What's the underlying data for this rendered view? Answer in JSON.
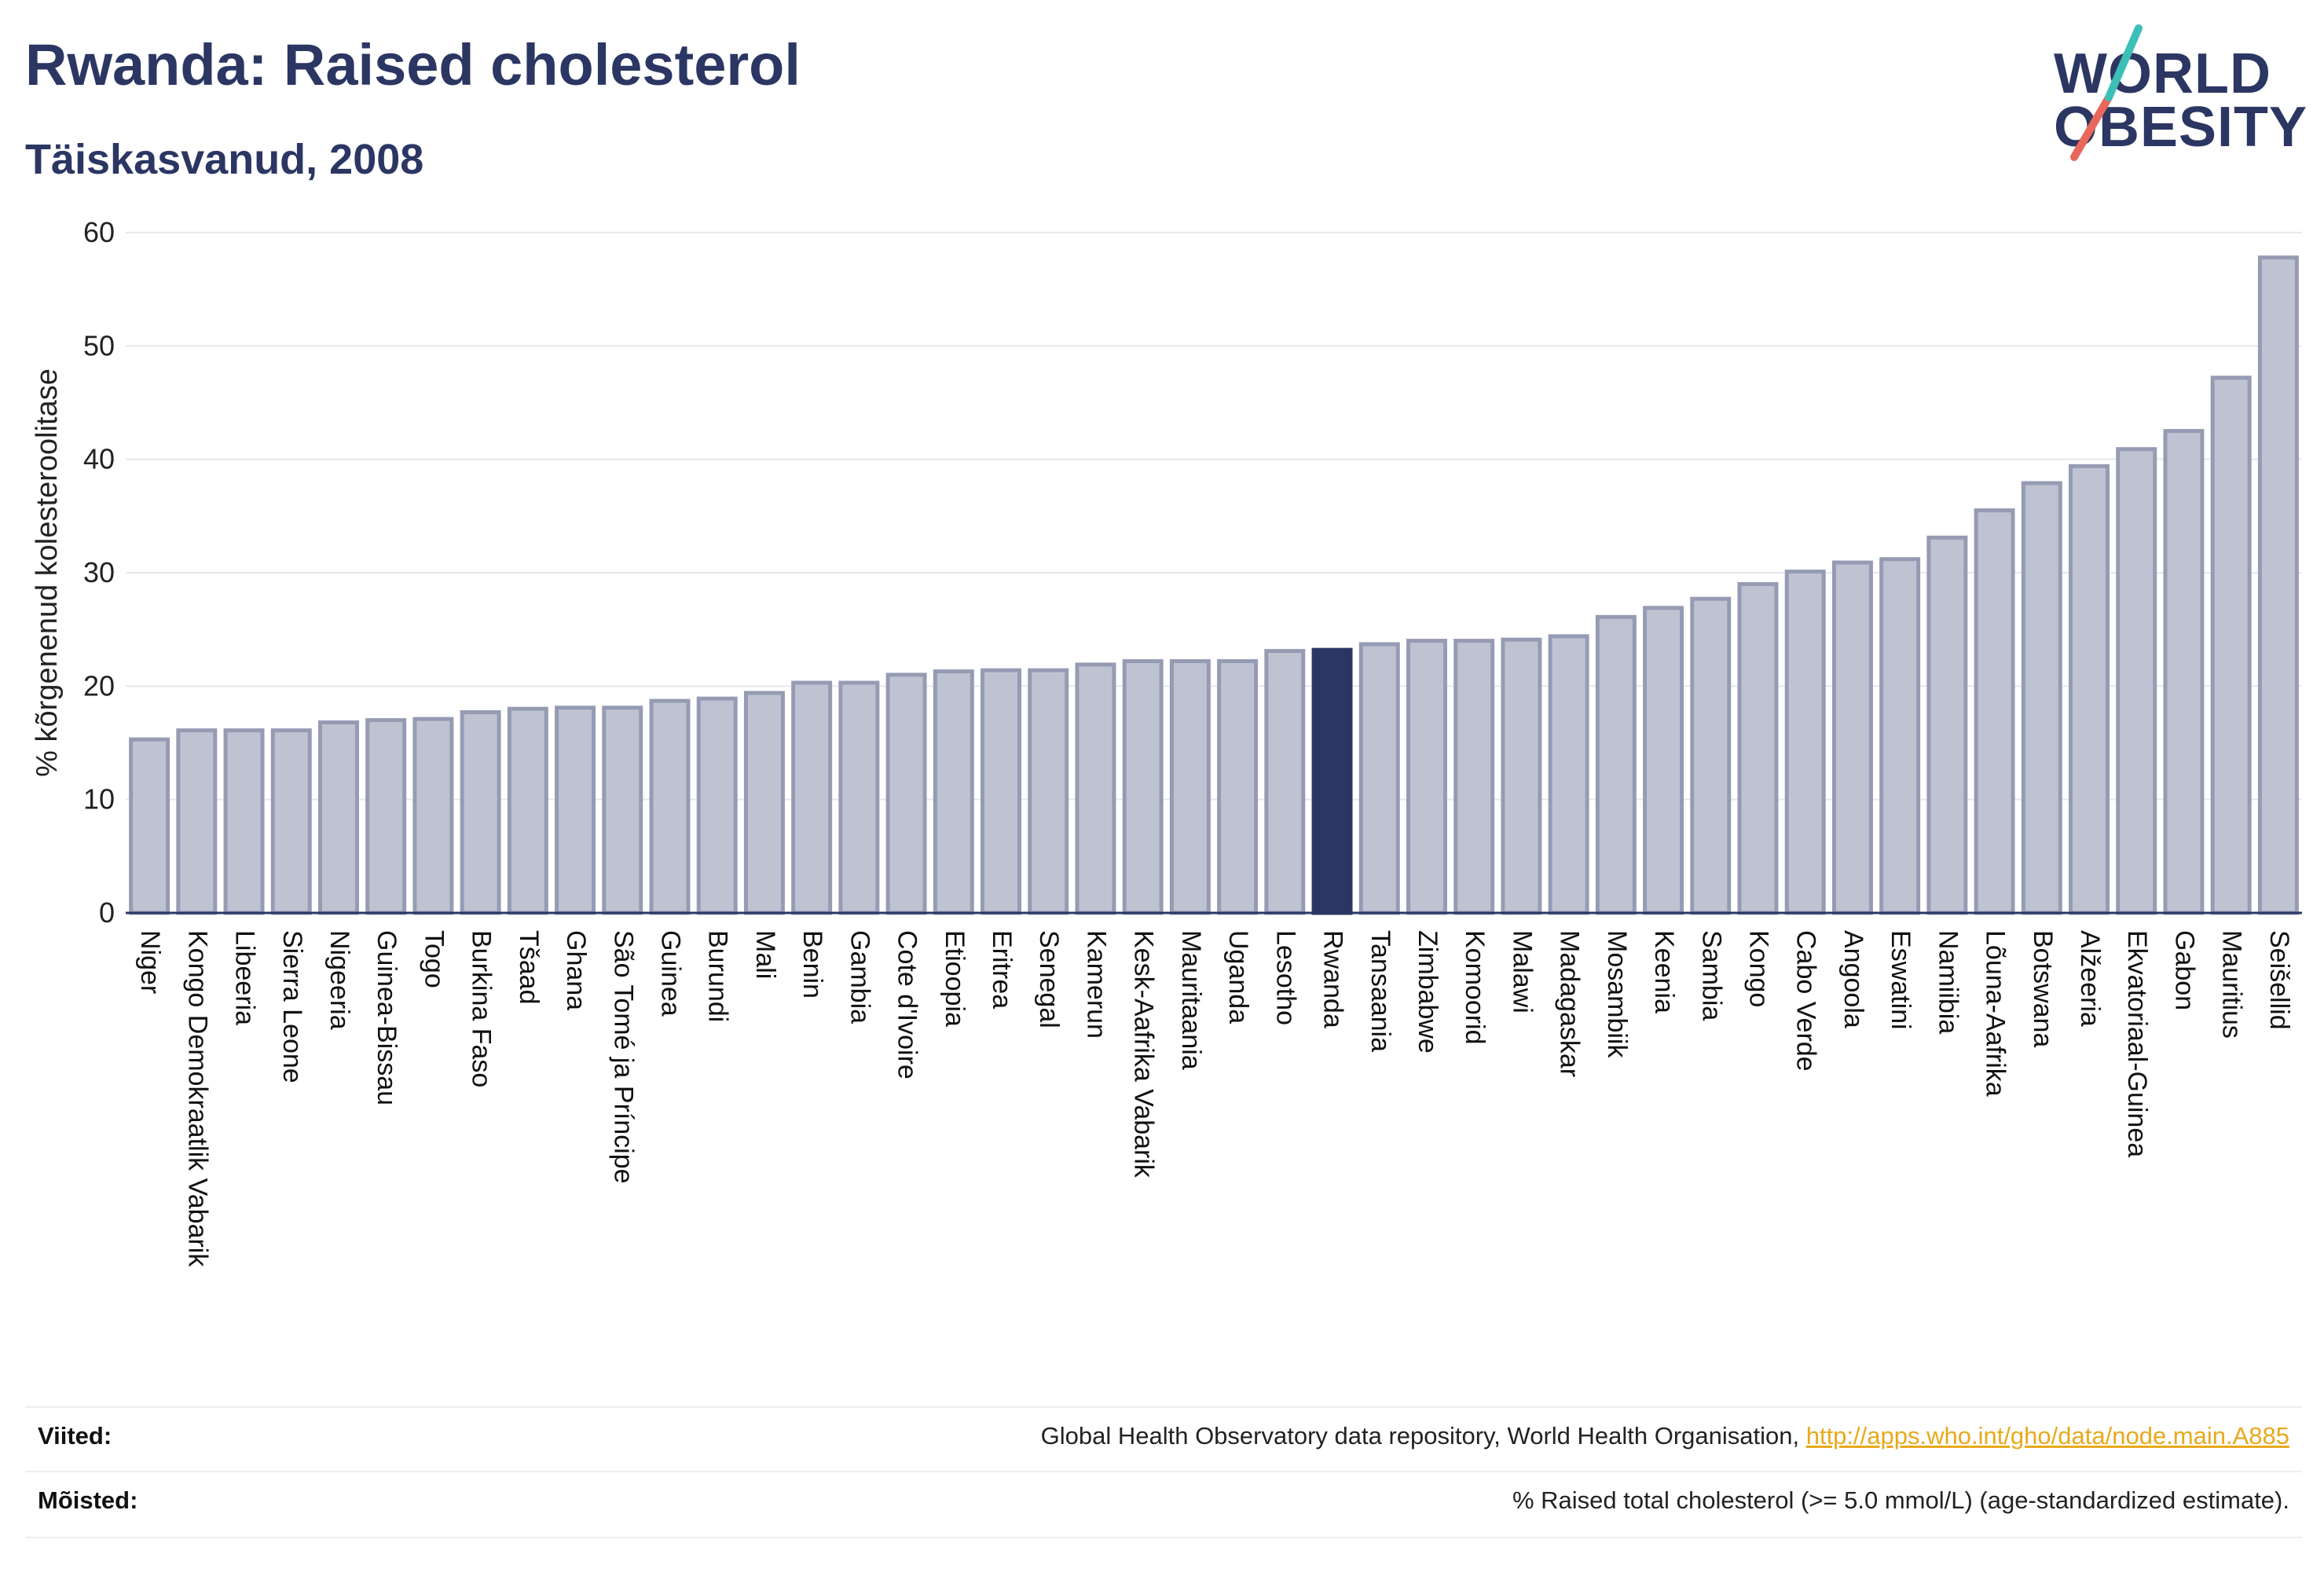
{
  "header": {
    "title": "Rwanda: Raised cholesterol",
    "subtitle": "Täiskasvanud, 2008"
  },
  "logo": {
    "line1": "WORLD",
    "line2": "OBESITY",
    "colors": {
      "text": "#2b3663",
      "slash_top": "#3bbfb7",
      "slash_bottom": "#e8675a"
    }
  },
  "chart_data": {
    "type": "bar",
    "title": "",
    "xlabel": "",
    "ylabel": "% kõrgenenud kolesteroolitase",
    "ylim": [
      0,
      60
    ],
    "yticks": [
      0,
      10,
      20,
      30,
      40,
      50,
      60
    ],
    "grid": true,
    "highlight": "Rwanda",
    "colors": {
      "bar": "#bfc3d1",
      "bar_edge": "#959bb3",
      "highlight": "#2b3663"
    },
    "categories": [
      "Niger",
      "Kongo Demokraatlik Vabarik",
      "Libeeria",
      "Sierra Leone",
      "Nigeeria",
      "Guinea-Bissau",
      "Togo",
      "Burkina Faso",
      "Tšaad",
      "Ghana",
      "São Tomé ja Príncipe",
      "Guinea",
      "Burundi",
      "Mali",
      "Benin",
      "Gambia",
      "Cote d'Ivoire",
      "Etioopia",
      "Eritrea",
      "Senegal",
      "Kamerun",
      "Kesk-Aafrika Vabarik",
      "Mauritaania",
      "Uganda",
      "Lesotho",
      "Rwanda",
      "Tansaania",
      "Zimbabwe",
      "Komoorid",
      "Malawi",
      "Madagaskar",
      "Mosambiik",
      "Keenia",
      "Sambia",
      "Kongo",
      "Cabo Verde",
      "Angoola",
      "Eswatini",
      "Namiibia",
      "Lõuna-Aafrika",
      "Botswana",
      "Alžeeria",
      "Ekvatoriaal-Guinea",
      "Gabon",
      "Mauritius",
      "Seišellid"
    ],
    "values": [
      15.3,
      16.1,
      16.1,
      16.1,
      16.8,
      17.0,
      17.1,
      17.7,
      18.0,
      18.1,
      18.1,
      18.7,
      18.9,
      19.4,
      20.3,
      20.3,
      21.0,
      21.3,
      21.4,
      21.4,
      21.9,
      22.2,
      22.2,
      22.2,
      23.1,
      23.2,
      23.7,
      24.0,
      24.0,
      24.1,
      24.4,
      26.1,
      26.9,
      27.7,
      29.0,
      30.1,
      30.9,
      31.2,
      33.1,
      35.5,
      37.9,
      39.4,
      40.9,
      42.5,
      47.2,
      57.8
    ]
  },
  "footer": {
    "sources_label": "Viited:",
    "sources_text": "Global Health Observatory data repository, World Health Organisation, ",
    "sources_link": "http://apps.who.int/gho/data/node.main.A885",
    "definitions_label": "Mõisted:",
    "definitions_text": "% Raised total cholesterol (>= 5.0 mmol/L) (age-standardized estimate)."
  }
}
